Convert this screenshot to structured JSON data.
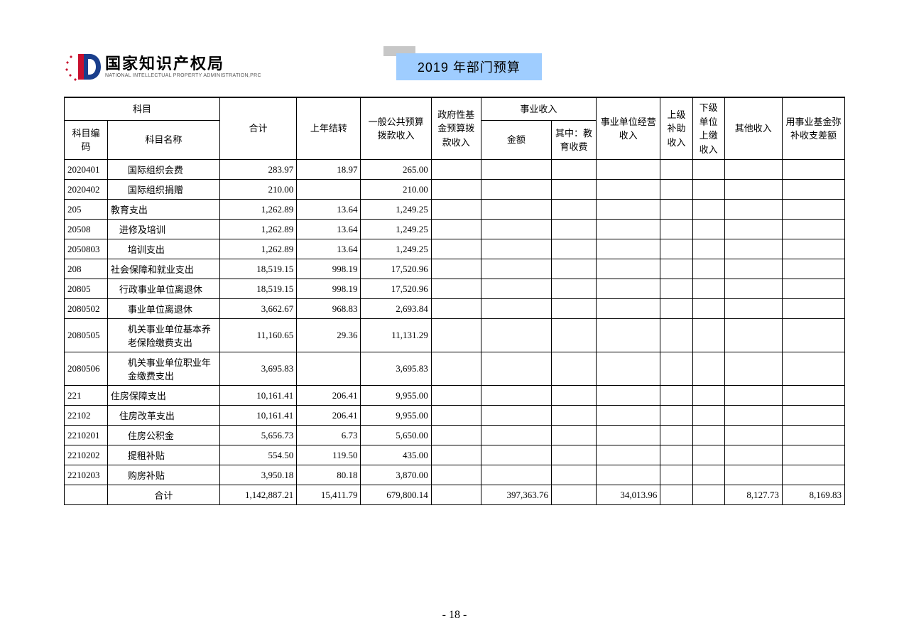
{
  "header": {
    "org_cn": "国家知识产权局",
    "org_en": "NATIONAL INTELLECTUAL PROPERTY ADMINISTRATION,PRC",
    "doc_title": "2019 年部门预算"
  },
  "columns": {
    "subject": "科目",
    "code": "科目编码",
    "name": "科目名称",
    "total": "合计",
    "prev_carry": "上年结转",
    "general_budget": "一般公共预算拨款收入",
    "gov_fund": "政府性基金预算拨款收入",
    "biz_income": "事业收入",
    "biz_amount": "金额",
    "biz_edu": "其中：教育收费",
    "oper_income": "事业单位经营收入",
    "upper_subsidy": "上级补助收入",
    "lower_turnin": "下级单位上缴收入",
    "other_income": "其他收入",
    "fund_makeup": "用事业基金弥补收支差额"
  },
  "rows": [
    {
      "code": "2020401",
      "name": "国际组织会费",
      "indent": 2,
      "total": "283.97",
      "prev": "18.97",
      "general": "265.00",
      "gov": "",
      "biz_amt": "",
      "biz_edu": "",
      "oper": "",
      "upper": "",
      "lower": "",
      "other": "",
      "fund": ""
    },
    {
      "code": "2020402",
      "name": "国际组织捐赠",
      "indent": 2,
      "total": "210.00",
      "prev": "",
      "general": "210.00",
      "gov": "",
      "biz_amt": "",
      "biz_edu": "",
      "oper": "",
      "upper": "",
      "lower": "",
      "other": "",
      "fund": ""
    },
    {
      "code": "205",
      "name": "教育支出",
      "indent": 0,
      "total": "1,262.89",
      "prev": "13.64",
      "general": "1,249.25",
      "gov": "",
      "biz_amt": "",
      "biz_edu": "",
      "oper": "",
      "upper": "",
      "lower": "",
      "other": "",
      "fund": ""
    },
    {
      "code": "20508",
      "name": "进修及培训",
      "indent": 1,
      "total": "1,262.89",
      "prev": "13.64",
      "general": "1,249.25",
      "gov": "",
      "biz_amt": "",
      "biz_edu": "",
      "oper": "",
      "upper": "",
      "lower": "",
      "other": "",
      "fund": ""
    },
    {
      "code": "2050803",
      "name": "培训支出",
      "indent": 2,
      "total": "1,262.89",
      "prev": "13.64",
      "general": "1,249.25",
      "gov": "",
      "biz_amt": "",
      "biz_edu": "",
      "oper": "",
      "upper": "",
      "lower": "",
      "other": "",
      "fund": ""
    },
    {
      "code": "208",
      "name": "社会保障和就业支出",
      "indent": 0,
      "total": "18,519.15",
      "prev": "998.19",
      "general": "17,520.96",
      "gov": "",
      "biz_amt": "",
      "biz_edu": "",
      "oper": "",
      "upper": "",
      "lower": "",
      "other": "",
      "fund": ""
    },
    {
      "code": "20805",
      "name": "行政事业单位离退休",
      "indent": 1,
      "total": "18,519.15",
      "prev": "998.19",
      "general": "17,520.96",
      "gov": "",
      "biz_amt": "",
      "biz_edu": "",
      "oper": "",
      "upper": "",
      "lower": "",
      "other": "",
      "fund": ""
    },
    {
      "code": "2080502",
      "name": "事业单位离退休",
      "indent": 2,
      "total": "3,662.67",
      "prev": "968.83",
      "general": "2,693.84",
      "gov": "",
      "biz_amt": "",
      "biz_edu": "",
      "oper": "",
      "upper": "",
      "lower": "",
      "other": "",
      "fund": ""
    },
    {
      "code": "2080505",
      "name": "机关事业单位基本养老保险缴费支出",
      "indent": 2,
      "total": "11,160.65",
      "prev": "29.36",
      "general": "11,131.29",
      "gov": "",
      "biz_amt": "",
      "biz_edu": "",
      "oper": "",
      "upper": "",
      "lower": "",
      "other": "",
      "fund": ""
    },
    {
      "code": "2080506",
      "name": "机关事业单位职业年金缴费支出",
      "indent": 2,
      "total": "3,695.83",
      "prev": "",
      "general": "3,695.83",
      "gov": "",
      "biz_amt": "",
      "biz_edu": "",
      "oper": "",
      "upper": "",
      "lower": "",
      "other": "",
      "fund": ""
    },
    {
      "code": "221",
      "name": "住房保障支出",
      "indent": 0,
      "total": "10,161.41",
      "prev": "206.41",
      "general": "9,955.00",
      "gov": "",
      "biz_amt": "",
      "biz_edu": "",
      "oper": "",
      "upper": "",
      "lower": "",
      "other": "",
      "fund": ""
    },
    {
      "code": "22102",
      "name": "住房改革支出",
      "indent": 1,
      "total": "10,161.41",
      "prev": "206.41",
      "general": "9,955.00",
      "gov": "",
      "biz_amt": "",
      "biz_edu": "",
      "oper": "",
      "upper": "",
      "lower": "",
      "other": "",
      "fund": ""
    },
    {
      "code": "2210201",
      "name": "住房公积金",
      "indent": 2,
      "total": "5,656.73",
      "prev": "6.73",
      "general": "5,650.00",
      "gov": "",
      "biz_amt": "",
      "biz_edu": "",
      "oper": "",
      "upper": "",
      "lower": "",
      "other": "",
      "fund": ""
    },
    {
      "code": "2210202",
      "name": "提租补贴",
      "indent": 2,
      "total": "554.50",
      "prev": "119.50",
      "general": "435.00",
      "gov": "",
      "biz_amt": "",
      "biz_edu": "",
      "oper": "",
      "upper": "",
      "lower": "",
      "other": "",
      "fund": ""
    },
    {
      "code": "2210203",
      "name": "购房补贴",
      "indent": 2,
      "total": "3,950.18",
      "prev": "80.18",
      "general": "3,870.00",
      "gov": "",
      "biz_amt": "",
      "biz_edu": "",
      "oper": "",
      "upper": "",
      "lower": "",
      "other": "",
      "fund": ""
    }
  ],
  "total_row": {
    "label": "合计",
    "total": "1,142,887.21",
    "prev": "15,411.79",
    "general": "679,800.14",
    "gov": "",
    "biz_amt": "397,363.76",
    "biz_edu": "",
    "oper": "34,013.96",
    "upper": "",
    "lower": "",
    "other": "8,127.73",
    "fund": "8,169.83"
  },
  "page_number": "- 18 -",
  "colors": {
    "title_bg": "#9fcdff",
    "title_shadow": "#c7c7c7",
    "border": "#000000",
    "logo_red": "#c8102e",
    "logo_blue": "#1a3e8c"
  }
}
